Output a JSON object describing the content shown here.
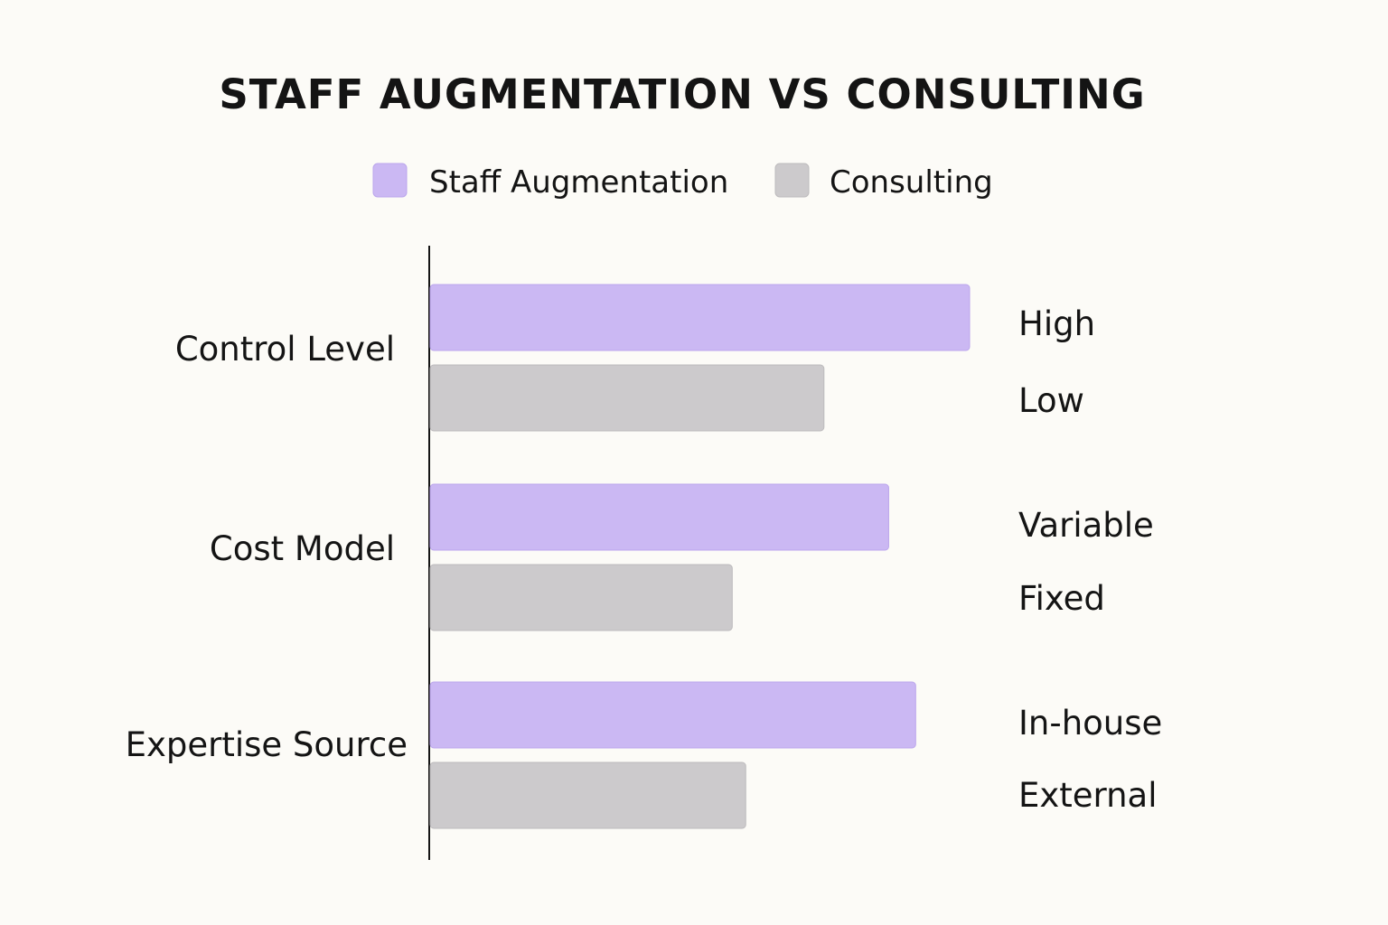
{
  "chart_data": {
    "type": "bar",
    "orientation": "horizontal",
    "title": "STAFF AUGMENTATION VS CONSULTING",
    "legend_position": "top-center",
    "grid": false,
    "categories": [
      "Control Level",
      "Cost Model",
      "Expertise Source"
    ],
    "series": [
      {
        "name": "Staff Augmentation",
        "color": "#cbb8f3",
        "values": [
          1.0,
          0.85,
          0.9
        ],
        "labels": [
          "High",
          "Variable",
          "In-house"
        ]
      },
      {
        "name": "Consulting",
        "color": "#cccacc",
        "values": [
          0.73,
          0.56,
          0.585
        ],
        "labels": [
          "Low",
          "Fixed",
          "External"
        ]
      }
    ],
    "xlim": [
      0,
      1
    ]
  }
}
